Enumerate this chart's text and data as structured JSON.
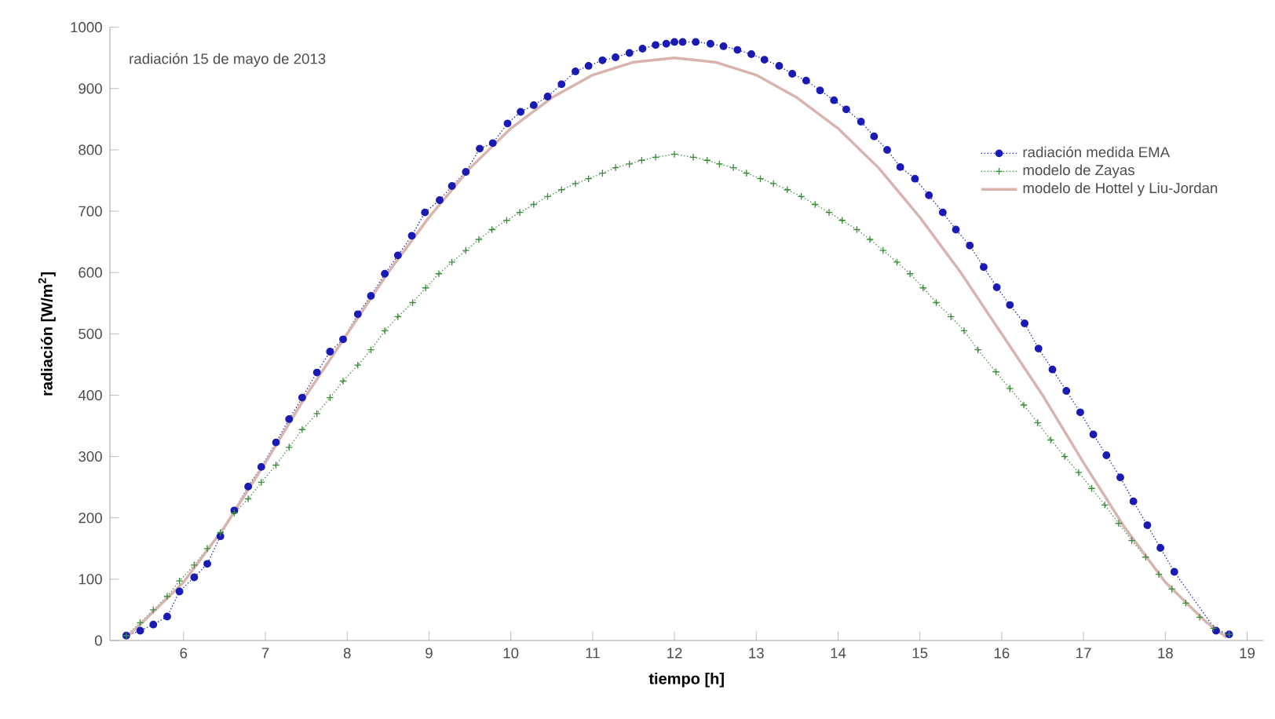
{
  "chart_data": {
    "type": "line",
    "xlabel": "tiempo [h]",
    "ylabel": "radiación [W/m$^{2}$]",
    "annotations": [
      "radiación 15 de mayo de 2013"
    ],
    "xlim": [
      5.1,
      19.2
    ],
    "xticks": [
      6,
      7,
      8,
      9,
      10,
      11,
      12,
      13,
      14,
      15,
      16,
      17,
      18,
      19
    ],
    "ylim": [
      0,
      1000
    ],
    "yticks": [
      0,
      100,
      200,
      300,
      400,
      500,
      600,
      700,
      800,
      900,
      1000
    ],
    "grid": false,
    "legend": "top right",
    "series": [
      {
        "name": "radiación medida EMA",
        "color": "#1a1ab4",
        "marker": "circle",
        "line_style": "dotted",
        "x": [
          5.3,
          5.47,
          5.63,
          5.8,
          5.95,
          6.13,
          6.29,
          6.45,
          6.62,
          6.79,
          6.95,
          7.13,
          7.29,
          7.45,
          7.63,
          7.79,
          7.95,
          8.13,
          8.29,
          8.46,
          8.62,
          8.79,
          8.95,
          9.13,
          9.28,
          9.45,
          9.62,
          9.78,
          9.96,
          10.12,
          10.28,
          10.45,
          10.62,
          10.79,
          10.95,
          11.12,
          11.28,
          11.45,
          11.61,
          11.77,
          11.9,
          12.0,
          12.1,
          12.26,
          12.44,
          12.6,
          12.77,
          12.94,
          13.1,
          13.28,
          13.44,
          13.61,
          13.78,
          13.95,
          14.1,
          14.28,
          14.44,
          14.6,
          14.76,
          14.94,
          15.11,
          15.28,
          15.44,
          15.61,
          15.78,
          15.94,
          16.1,
          16.28,
          16.45,
          16.62,
          16.79,
          16.96,
          17.12,
          17.28,
          17.45,
          17.61,
          17.78,
          17.94,
          18.11,
          18.62,
          18.78
        ],
        "values": [
          8,
          16,
          26,
          39,
          80,
          103,
          125,
          170,
          212,
          251,
          283,
          323,
          361,
          396,
          437,
          471,
          491,
          532,
          562,
          598,
          628,
          660,
          698,
          718,
          741,
          764,
          802,
          811,
          843,
          862,
          873,
          887,
          907,
          928,
          937,
          946,
          951,
          958,
          965,
          971,
          973,
          976,
          976,
          976,
          973,
          969,
          963,
          956,
          947,
          937,
          924,
          913,
          897,
          881,
          866,
          846,
          822,
          800,
          772,
          753,
          726,
          698,
          670,
          644,
          609,
          576,
          547,
          517,
          476,
          442,
          407,
          372,
          336,
          302,
          266,
          227,
          188,
          151,
          112,
          16,
          10
        ]
      },
      {
        "name": "modelo de Zayas",
        "color": "#3c8c3c",
        "marker": "cross",
        "line_style": "dotted",
        "x": [
          5.3,
          5.47,
          5.63,
          5.8,
          5.95,
          6.13,
          6.29,
          6.45,
          6.62,
          6.79,
          6.95,
          7.13,
          7.29,
          7.45,
          7.63,
          7.79,
          7.95,
          8.13,
          8.29,
          8.46,
          8.62,
          8.8,
          8.96,
          9.12,
          9.28,
          9.45,
          9.61,
          9.77,
          9.95,
          10.11,
          10.28,
          10.45,
          10.62,
          10.79,
          10.95,
          11.12,
          11.28,
          11.45,
          11.6,
          11.77,
          12.0,
          12.23,
          12.4,
          12.55,
          12.72,
          12.88,
          13.05,
          13.21,
          13.38,
          13.55,
          13.72,
          13.89,
          14.05,
          14.23,
          14.39,
          14.55,
          14.72,
          14.88,
          15.04,
          15.2,
          15.38,
          15.54,
          15.71,
          15.93,
          16.1,
          16.27,
          16.44,
          16.6,
          16.77,
          16.94,
          17.1,
          17.26,
          17.43,
          17.59,
          17.76,
          17.92,
          18.08,
          18.25,
          18.42,
          18.59,
          18.78
        ],
        "values": [
          8,
          29,
          50,
          72,
          97,
          123,
          150,
          176,
          208,
          231,
          258,
          286,
          315,
          344,
          370,
          396,
          423,
          449,
          474,
          505,
          528,
          551,
          575,
          598,
          617,
          636,
          654,
          670,
          685,
          698,
          711,
          724,
          735,
          745,
          753,
          762,
          771,
          777,
          783,
          788,
          793,
          788,
          783,
          777,
          771,
          762,
          753,
          745,
          735,
          724,
          711,
          698,
          685,
          670,
          654,
          636,
          617,
          598,
          575,
          551,
          528,
          505,
          474,
          438,
          411,
          384,
          355,
          327,
          300,
          274,
          248,
          221,
          191,
          163,
          136,
          108,
          84,
          61,
          38,
          20,
          10
        ]
      },
      {
        "name": "modelo de Hottel y Liu-Jordan",
        "color": "#d9b3ad",
        "marker": "none",
        "line_style": "solid",
        "x": [
          5.3,
          5.5,
          6,
          6.5,
          7,
          7.5,
          8,
          8.5,
          9,
          9.5,
          10,
          10.5,
          11,
          11.5,
          12,
          12.5,
          13,
          13.5,
          14,
          14.5,
          15,
          15.5,
          16,
          16.5,
          17,
          17.5,
          18,
          18.5,
          18.75
        ],
        "values": [
          5,
          30,
          95,
          185,
          290,
          400,
          500,
          600,
          690,
          770,
          835,
          885,
          922,
          943,
          950,
          943,
          922,
          885,
          835,
          770,
          690,
          600,
          500,
          400,
          290,
          185,
          95,
          30,
          5
        ]
      }
    ]
  }
}
